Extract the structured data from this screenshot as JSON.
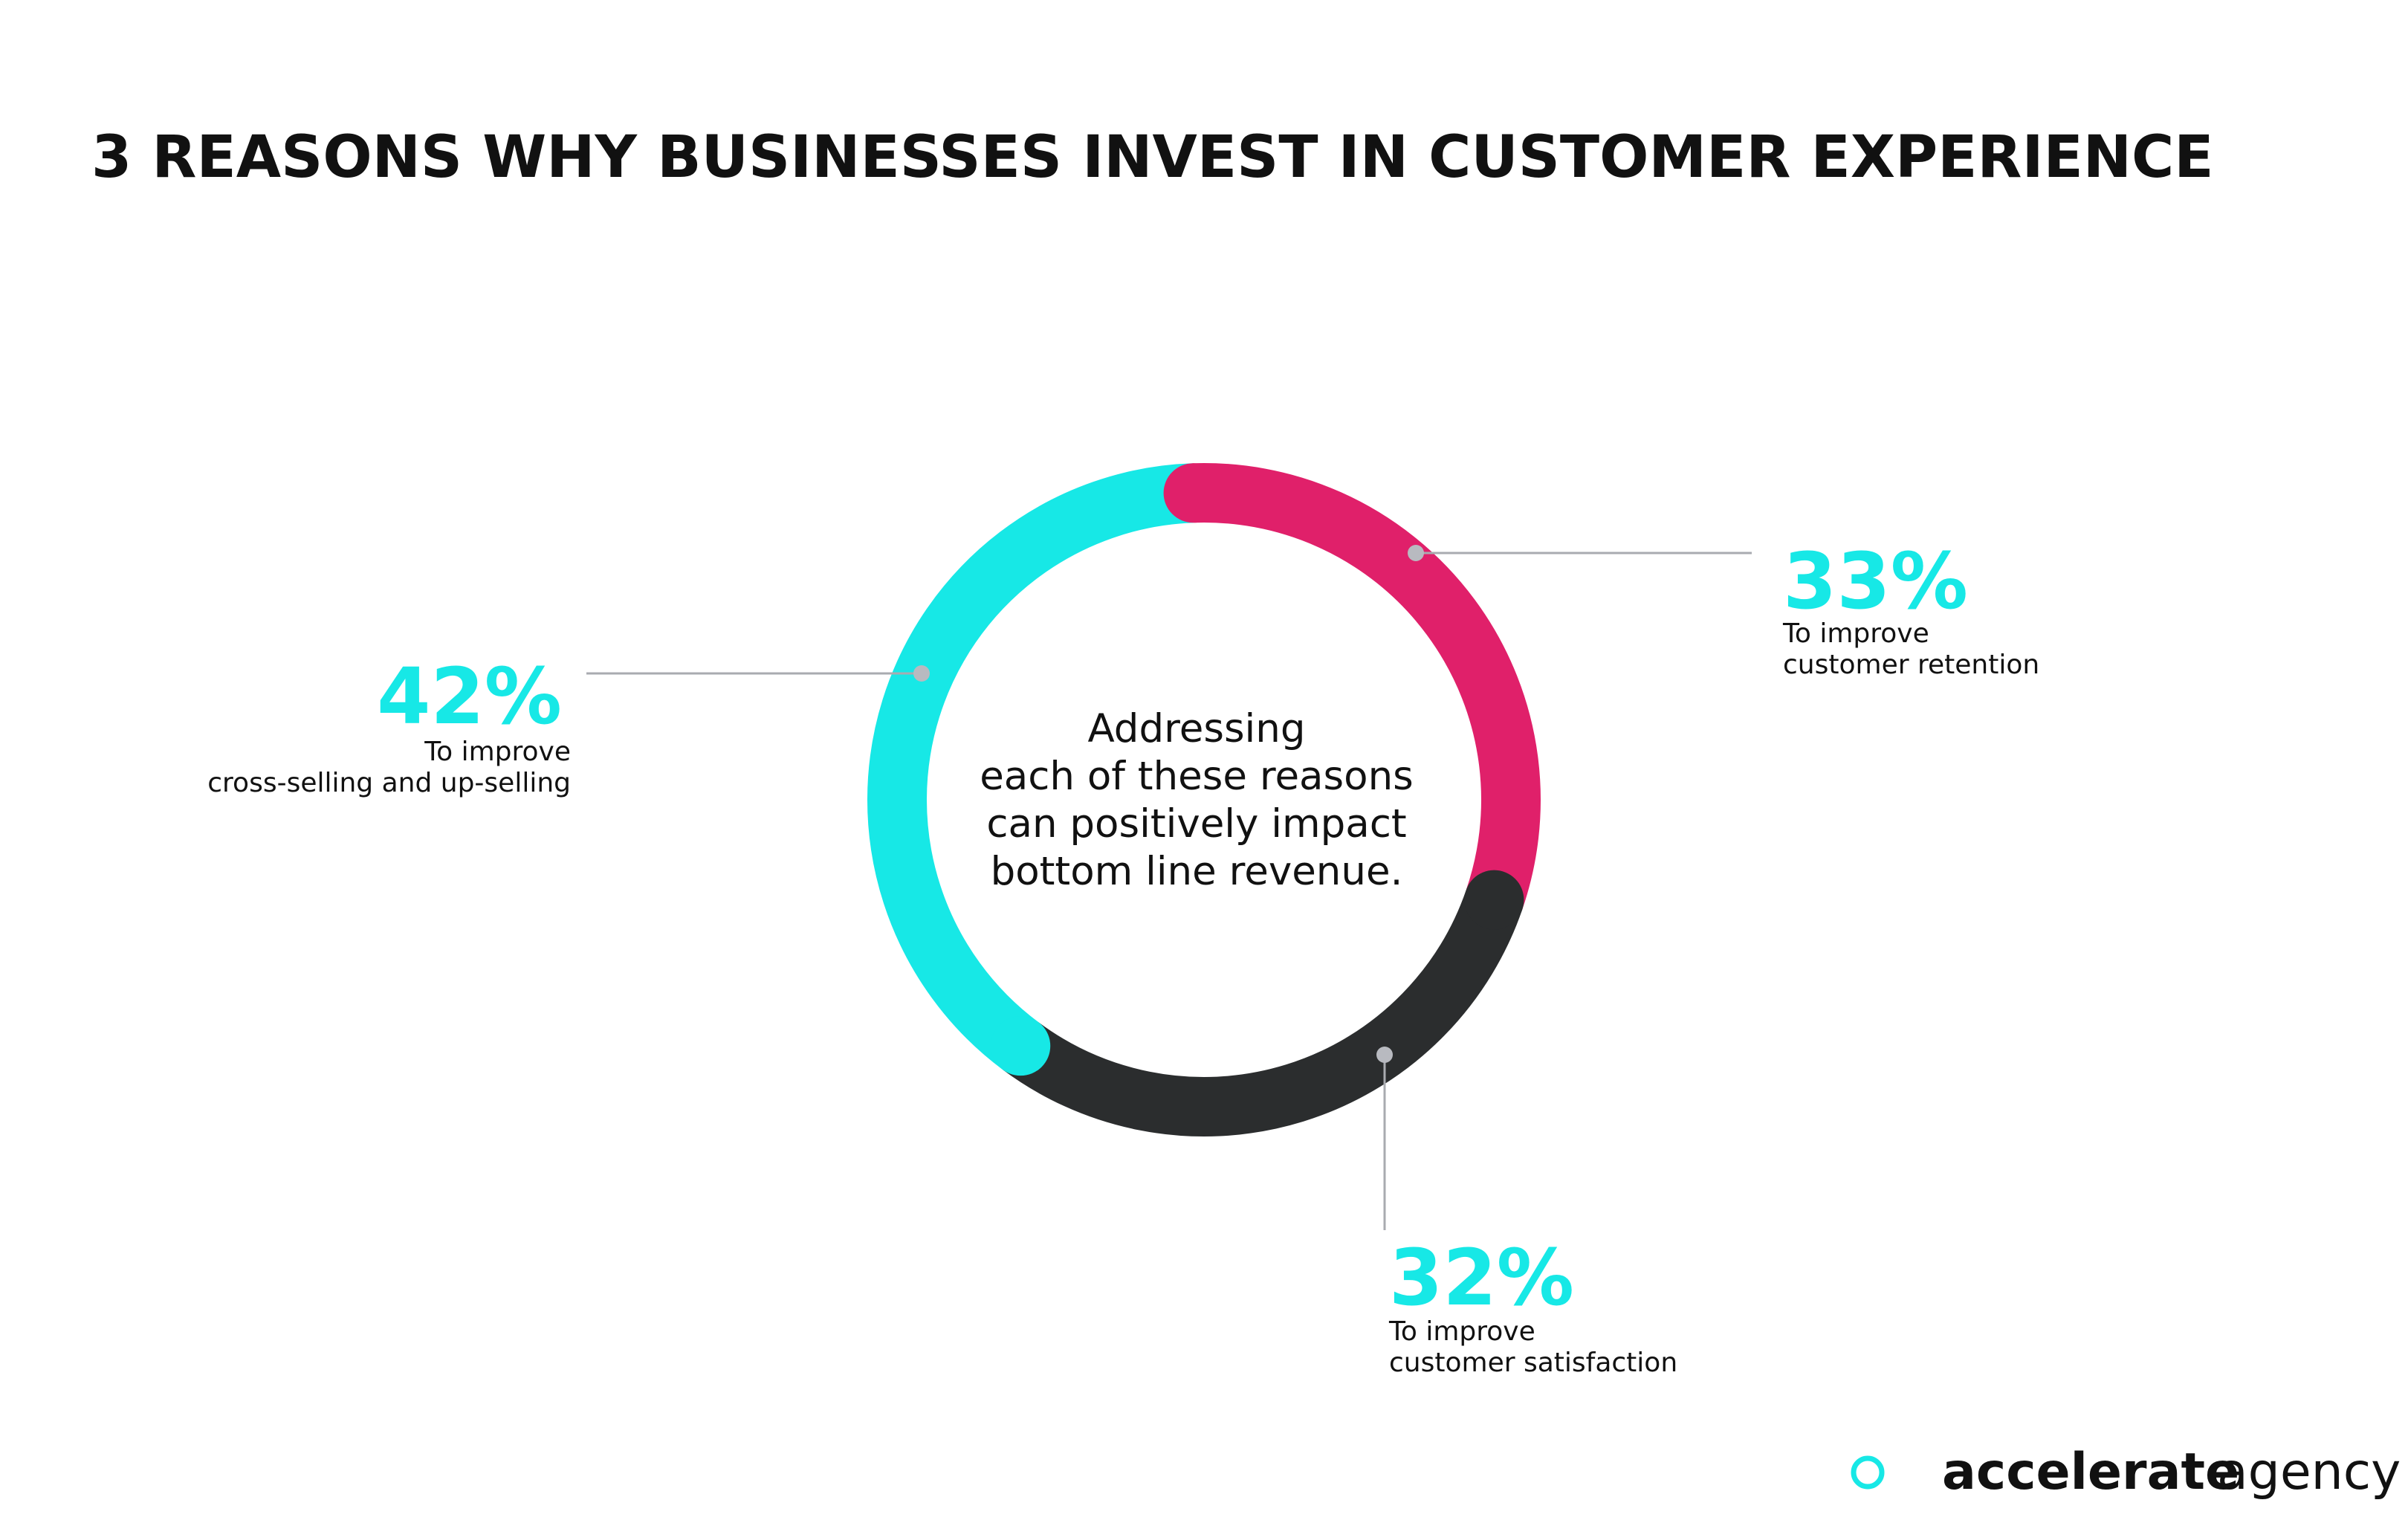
{
  "chart_data": {
    "type": "donut",
    "title": "3 REASONS WHY BUSINESSES INVEST IN CUSTOMER EXPERIENCE",
    "center_text": [
      "Addressing",
      "each of these reasons",
      "can positively impact",
      "bottom line revenue."
    ],
    "categories": [
      [
        "To improve",
        "customer retention"
      ],
      [
        "To improve",
        "customer satisfaction"
      ],
      [
        "To improve",
        "cross-selling and up-selling"
      ]
    ],
    "values": [
      33,
      32,
      42
    ],
    "value_labels": [
      "33%",
      "32%",
      "42%"
    ],
    "colors": [
      "#e0206a",
      "#2b2d2e",
      "#17e8e6"
    ],
    "value_label_color": "#17e8e6"
  },
  "logo": {
    "bold": "accelerate",
    "light": "agency",
    "color": "#17e8e6"
  }
}
